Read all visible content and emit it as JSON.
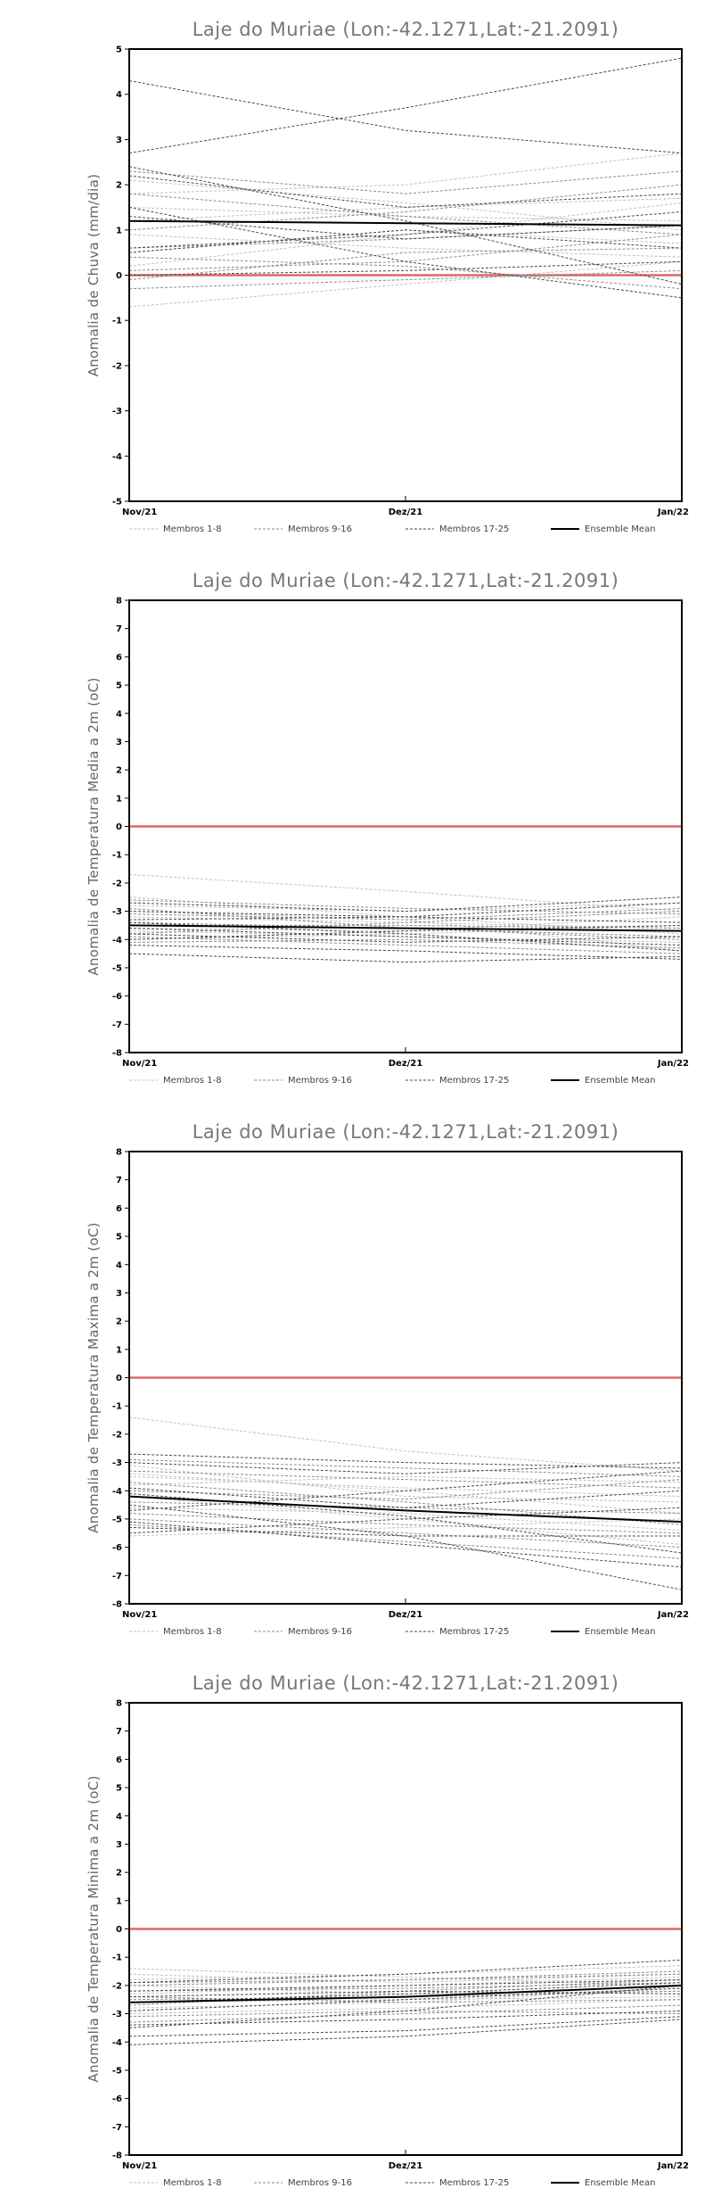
{
  "chart_data": [
    {
      "type": "line",
      "title": "Laje do Muriae (Lon:-42.1271,Lat:-21.2091)",
      "ylabel": "Anomalia de Chuva (mm/dia)",
      "xlabel": "",
      "categories": [
        "Nov/21",
        "Dez/21",
        "Jan/22"
      ],
      "ylim": [
        -5,
        5
      ],
      "yticks": [
        -5,
        -4,
        -3,
        -2,
        -1,
        0,
        1,
        2,
        3,
        4,
        5
      ],
      "reference_line": 0,
      "legend": [
        "Membros 1-8",
        "Membros 9-16",
        "Membros 17-25",
        "Ensemble Mean"
      ],
      "series": [
        {
          "group": "Membros 1-8",
          "values": [
            1.2,
            1.5,
            1.7
          ]
        },
        {
          "group": "Membros 1-8",
          "values": [
            0.2,
            0.9,
            1.6
          ]
        },
        {
          "group": "Membros 1-8",
          "values": [
            0.5,
            1.0,
            0.7
          ]
        },
        {
          "group": "Membros 1-8",
          "values": [
            1.8,
            2.0,
            2.7
          ]
        },
        {
          "group": "Membros 1-8",
          "values": [
            -0.7,
            -0.2,
            0.3
          ]
        },
        {
          "group": "Membros 1-8",
          "values": [
            1.5,
            1.3,
            1.2
          ]
        },
        {
          "group": "Membros 1-8",
          "values": [
            0.9,
            0.6,
            0.4
          ]
        },
        {
          "group": "Membros 1-8",
          "values": [
            2.1,
            1.6,
            1.0
          ]
        },
        {
          "group": "Membros 9-16",
          "values": [
            0.1,
            0.3,
            0.9
          ]
        },
        {
          "group": "Membros 9-16",
          "values": [
            2.3,
            1.8,
            2.3
          ]
        },
        {
          "group": "Membros 9-16",
          "values": [
            -0.3,
            -0.1,
            0.1
          ]
        },
        {
          "group": "Membros 9-16",
          "values": [
            0.6,
            0.8,
            1.1
          ]
        },
        {
          "group": "Membros 9-16",
          "values": [
            1.8,
            1.3,
            0.9
          ]
        },
        {
          "group": "Membros 9-16",
          "values": [
            0.4,
            0.2,
            -0.3
          ]
        },
        {
          "group": "Membros 9-16",
          "values": [
            1.0,
            1.4,
            2.0
          ]
        },
        {
          "group": "Membros 9-16",
          "values": [
            -0.1,
            0.5,
            0.6
          ]
        },
        {
          "group": "Membros 17-25",
          "values": [
            4.3,
            3.2,
            2.7
          ]
        },
        {
          "group": "Membros 17-25",
          "values": [
            2.7,
            3.7,
            4.8
          ]
        },
        {
          "group": "Membros 17-25",
          "values": [
            2.2,
            1.5,
            1.8
          ]
        },
        {
          "group": "Membros 17-25",
          "values": [
            1.5,
            0.3,
            -0.5
          ]
        },
        {
          "group": "Membros 17-25",
          "values": [
            0.6,
            0.9,
            1.4
          ]
        },
        {
          "group": "Membros 17-25",
          "values": [
            0.0,
            0.1,
            0.3
          ]
        },
        {
          "group": "Membros 17-25",
          "values": [
            1.3,
            0.8,
            1.1
          ]
        },
        {
          "group": "Membros 17-25",
          "values": [
            0.5,
            1.0,
            0.6
          ]
        },
        {
          "group": "Membros 17-25",
          "values": [
            2.4,
            1.2,
            -0.2
          ]
        },
        {
          "group": "Ensemble Mean",
          "values": [
            1.2,
            1.15,
            1.1
          ]
        }
      ]
    },
    {
      "type": "line",
      "title": "Laje do Muriae (Lon:-42.1271,Lat:-21.2091)",
      "ylabel": "Anomalia de Temperatura Media a 2m (oC)",
      "xlabel": "",
      "categories": [
        "Nov/21",
        "Dez/21",
        "Jan/22"
      ],
      "ylim": [
        -8,
        8
      ],
      "yticks": [
        -8,
        -7,
        -6,
        -5,
        -4,
        -3,
        -2,
        -1,
        0,
        1,
        2,
        3,
        4,
        5,
        6,
        7,
        8
      ],
      "reference_line": 0,
      "legend": [
        "Membros 1-8",
        "Membros 9-16",
        "Membros 17-25",
        "Ensemble Mean"
      ],
      "series": [
        {
          "group": "Membros 1-8",
          "values": [
            -1.7,
            -2.3,
            -3.0
          ]
        },
        {
          "group": "Membros 1-8",
          "values": [
            -2.8,
            -3.0,
            -2.7
          ]
        },
        {
          "group": "Membros 1-8",
          "values": [
            -3.2,
            -3.4,
            -3.6
          ]
        },
        {
          "group": "Membros 1-8",
          "values": [
            -3.7,
            -3.9,
            -4.1
          ]
        },
        {
          "group": "Membros 1-8",
          "values": [
            -2.5,
            -3.2,
            -3.8
          ]
        },
        {
          "group": "Membros 1-8",
          "values": [
            -4.0,
            -3.8,
            -3.5
          ]
        },
        {
          "group": "Membros 1-8",
          "values": [
            -3.0,
            -3.3,
            -4.4
          ]
        },
        {
          "group": "Membros 1-8",
          "values": [
            -3.6,
            -3.7,
            -3.2
          ]
        },
        {
          "group": "Membros 9-16",
          "values": [
            -2.6,
            -2.9,
            -3.1
          ]
        },
        {
          "group": "Membros 9-16",
          "values": [
            -3.4,
            -3.6,
            -3.9
          ]
        },
        {
          "group": "Membros 9-16",
          "values": [
            -3.9,
            -4.2,
            -4.5
          ]
        },
        {
          "group": "Membros 9-16",
          "values": [
            -3.1,
            -3.3,
            -2.9
          ]
        },
        {
          "group": "Membros 9-16",
          "values": [
            -4.1,
            -4.0,
            -4.3
          ]
        },
        {
          "group": "Membros 9-16",
          "values": [
            -3.5,
            -3.5,
            -3.6
          ]
        },
        {
          "group": "Membros 9-16",
          "values": [
            -2.9,
            -3.6,
            -4.0
          ]
        },
        {
          "group": "Membros 9-16",
          "values": [
            -3.8,
            -3.4,
            -3.0
          ]
        },
        {
          "group": "Membros 17-25",
          "values": [
            -4.5,
            -4.8,
            -4.6
          ]
        },
        {
          "group": "Membros 17-25",
          "values": [
            -2.7,
            -3.0,
            -2.5
          ]
        },
        {
          "group": "Membros 17-25",
          "values": [
            -3.3,
            -3.2,
            -2.7
          ]
        },
        {
          "group": "Membros 17-25",
          "values": [
            -4.2,
            -4.4,
            -4.7
          ]
        },
        {
          "group": "Membros 17-25",
          "values": [
            -3.6,
            -3.9,
            -4.2
          ]
        },
        {
          "group": "Membros 17-25",
          "values": [
            -3.0,
            -3.2,
            -3.4
          ]
        },
        {
          "group": "Membros 17-25",
          "values": [
            -3.8,
            -4.1,
            -3.9
          ]
        },
        {
          "group": "Membros 17-25",
          "values": [
            -4.0,
            -3.7,
            -3.5
          ]
        },
        {
          "group": "Membros 17-25",
          "values": [
            -3.4,
            -3.8,
            -4.4
          ]
        },
        {
          "group": "Ensemble Mean",
          "values": [
            -3.5,
            -3.6,
            -3.7
          ]
        }
      ]
    },
    {
      "type": "line",
      "title": "Laje do Muriae (Lon:-42.1271,Lat:-21.2091)",
      "ylabel": "Anomalia de Temperatura Maxima a 2m (oC)",
      "xlabel": "",
      "categories": [
        "Nov/21",
        "Dez/21",
        "Jan/22"
      ],
      "ylim": [
        -8,
        8
      ],
      "yticks": [
        -8,
        -7,
        -6,
        -5,
        -4,
        -3,
        -2,
        -1,
        0,
        1,
        2,
        3,
        4,
        5,
        6,
        7,
        8
      ],
      "reference_line": 0,
      "legend": [
        "Membros 1-8",
        "Membros 9-16",
        "Membros 17-25",
        "Ensemble Mean"
      ],
      "series": [
        {
          "group": "Membros 1-8",
          "values": [
            -1.4,
            -2.6,
            -3.3
          ]
        },
        {
          "group": "Membros 1-8",
          "values": [
            -3.4,
            -4.0,
            -4.8
          ]
        },
        {
          "group": "Membros 1-8",
          "values": [
            -3.8,
            -3.5,
            -3.7
          ]
        },
        {
          "group": "Membros 1-8",
          "values": [
            -5.6,
            -5.3,
            -5.0
          ]
        },
        {
          "group": "Membros 1-8",
          "values": [
            -3.1,
            -4.2,
            -4.4
          ]
        },
        {
          "group": "Membros 1-8",
          "values": [
            -4.6,
            -4.8,
            -5.4
          ]
        },
        {
          "group": "Membros 1-8",
          "values": [
            -4.2,
            -5.0,
            -5.9
          ]
        },
        {
          "group": "Membros 1-8",
          "values": [
            -3.5,
            -3.9,
            -4.2
          ]
        },
        {
          "group": "Membros 9-16",
          "values": [
            -2.9,
            -3.2,
            -3.5
          ]
        },
        {
          "group": "Membros 9-16",
          "values": [
            -3.7,
            -4.4,
            -5.2
          ]
        },
        {
          "group": "Membros 9-16",
          "values": [
            -4.4,
            -4.6,
            -4.8
          ]
        },
        {
          "group": "Membros 9-16",
          "values": [
            -5.2,
            -5.8,
            -6.4
          ]
        },
        {
          "group": "Membros 9-16",
          "values": [
            -3.3,
            -3.6,
            -3.9
          ]
        },
        {
          "group": "Membros 9-16",
          "values": [
            -4.8,
            -5.2,
            -5.5
          ]
        },
        {
          "group": "Membros 9-16",
          "values": [
            -4.0,
            -4.3,
            -3.6
          ]
        },
        {
          "group": "Membros 9-16",
          "values": [
            -5.0,
            -5.5,
            -6.0
          ]
        },
        {
          "group": "Membros 17-25",
          "values": [
            -2.7,
            -3.0,
            -3.2
          ]
        },
        {
          "group": "Membros 17-25",
          "values": [
            -4.5,
            -5.6,
            -7.5
          ]
        },
        {
          "group": "Membros 17-25",
          "values": [
            -5.1,
            -5.9,
            -6.7
          ]
        },
        {
          "group": "Membros 17-25",
          "values": [
            -3.0,
            -3.4,
            -3.0
          ]
        },
        {
          "group": "Membros 17-25",
          "values": [
            -4.7,
            -4.0,
            -3.3
          ]
        },
        {
          "group": "Membros 17-25",
          "values": [
            -5.3,
            -5.6,
            -5.6
          ]
        },
        {
          "group": "Membros 17-25",
          "values": [
            -4.1,
            -4.9,
            -6.2
          ]
        },
        {
          "group": "Membros 17-25",
          "values": [
            -3.9,
            -4.6,
            -4.0
          ]
        },
        {
          "group": "Membros 17-25",
          "values": [
            -5.5,
            -5.0,
            -4.6
          ]
        },
        {
          "group": "Ensemble Mean",
          "values": [
            -4.2,
            -4.7,
            -5.1
          ]
        }
      ]
    },
    {
      "type": "line",
      "title": "Laje do Muriae (Lon:-42.1271,Lat:-21.2091)",
      "ylabel": "Anomalia de Temperatura Minima a 2m (oC)",
      "xlabel": "",
      "categories": [
        "Nov/21",
        "Dez/21",
        "Jan/22"
      ],
      "ylim": [
        -8,
        8
      ],
      "yticks": [
        -8,
        -7,
        -6,
        -5,
        -4,
        -3,
        -2,
        -1,
        0,
        1,
        2,
        3,
        4,
        5,
        6,
        7,
        8
      ],
      "reference_line": 0,
      "legend": [
        "Membros 1-8",
        "Membros 9-16",
        "Membros 17-25",
        "Ensemble Mean"
      ],
      "series": [
        {
          "group": "Membros 1-8",
          "values": [
            -1.4,
            -1.7,
            -2.0
          ]
        },
        {
          "group": "Membros 1-8",
          "values": [
            -2.0,
            -2.3,
            -2.2
          ]
        },
        {
          "group": "Membros 1-8",
          "values": [
            -2.6,
            -2.5,
            -2.4
          ]
        },
        {
          "group": "Membros 1-8",
          "values": [
            -1.8,
            -1.6,
            -1.3
          ]
        },
        {
          "group": "Membros 1-8",
          "values": [
            -3.0,
            -2.8,
            -2.5
          ]
        },
        {
          "group": "Membros 1-8",
          "values": [
            -2.3,
            -2.0,
            -1.7
          ]
        },
        {
          "group": "Membros 1-8",
          "values": [
            -1.6,
            -1.9,
            -1.6
          ]
        },
        {
          "group": "Membros 1-8",
          "values": [
            -2.8,
            -2.6,
            -2.1
          ]
        },
        {
          "group": "Membros 9-16",
          "values": [
            -2.2,
            -2.1,
            -1.9
          ]
        },
        {
          "group": "Membros 9-16",
          "values": [
            -3.3,
            -3.0,
            -2.7
          ]
        },
        {
          "group": "Membros 9-16",
          "values": [
            -2.5,
            -2.4,
            -2.2
          ]
        },
        {
          "group": "Membros 9-16",
          "values": [
            -1.9,
            -1.8,
            -1.5
          ]
        },
        {
          "group": "Membros 9-16",
          "values": [
            -2.7,
            -2.2,
            -1.8
          ]
        },
        {
          "group": "Membros 9-16",
          "values": [
            -3.1,
            -2.9,
            -3.0
          ]
        },
        {
          "group": "Membros 9-16",
          "values": [
            -2.4,
            -2.6,
            -2.5
          ]
        },
        {
          "group": "Membros 9-16",
          "values": [
            -2.0,
            -1.8,
            -1.6
          ]
        },
        {
          "group": "Membros 17-25",
          "values": [
            -3.5,
            -2.9,
            -2.0
          ]
        },
        {
          "group": "Membros 17-25",
          "values": [
            -4.1,
            -3.8,
            -3.2
          ]
        },
        {
          "group": "Membros 17-25",
          "values": [
            -3.8,
            -3.6,
            -3.1
          ]
        },
        {
          "group": "Membros 17-25",
          "values": [
            -2.9,
            -2.5,
            -2.1
          ]
        },
        {
          "group": "Membros 17-25",
          "values": [
            -2.6,
            -2.3,
            -1.9
          ]
        },
        {
          "group": "Membros 17-25",
          "values": [
            -2.2,
            -2.0,
            -1.8
          ]
        },
        {
          "group": "Membros 17-25",
          "values": [
            -1.9,
            -1.6,
            -1.1
          ]
        },
        {
          "group": "Membros 17-25",
          "values": [
            -2.4,
            -2.2,
            -2.3
          ]
        },
        {
          "group": "Membros 17-25",
          "values": [
            -3.4,
            -3.2,
            -2.9
          ]
        },
        {
          "group": "Ensemble Mean",
          "values": [
            -2.6,
            -2.4,
            -2.0
          ]
        }
      ]
    }
  ],
  "colors": {
    "members_1_8": "#c0c0c0",
    "members_9_16": "#8c8c8c",
    "members_17_25": "#4a4a4a",
    "ensemble_mean": "#000000",
    "reference_line": "#e06666"
  }
}
